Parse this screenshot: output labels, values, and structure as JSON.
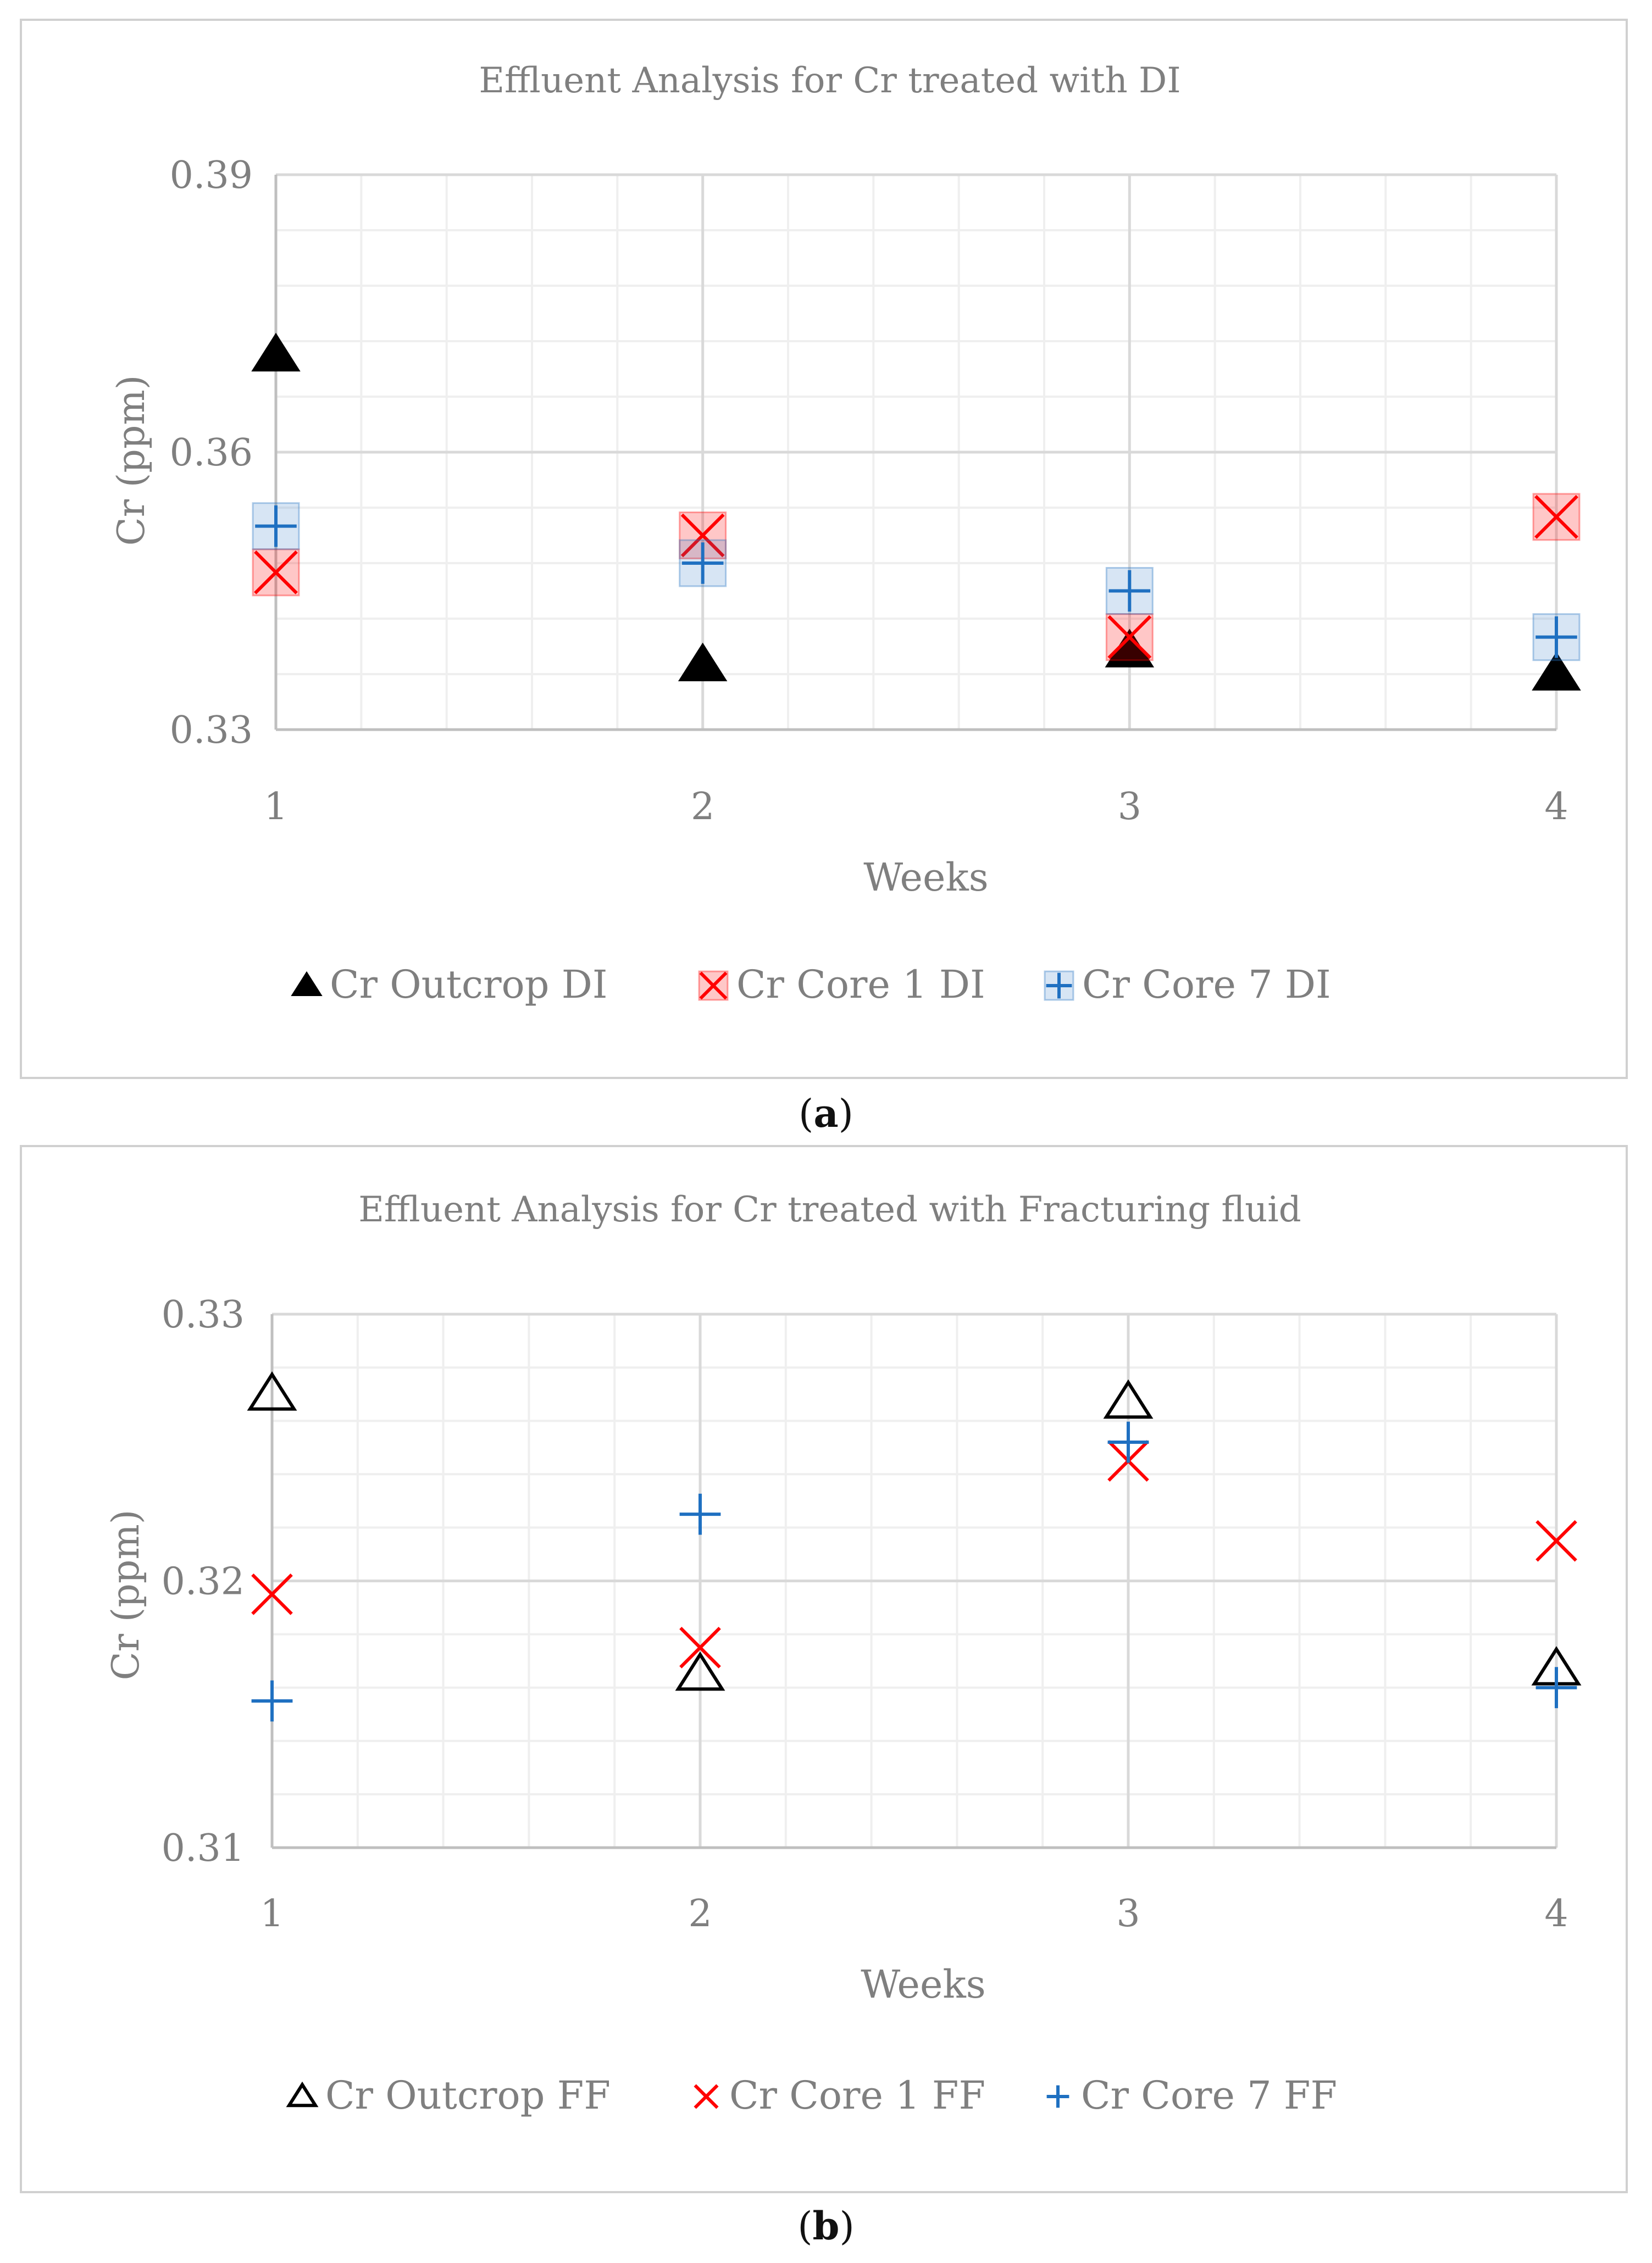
{
  "chart_data": [
    {
      "type": "scatter",
      "title": "Effluent Analysis for Cr treated with DI",
      "xlabel": "Weeks",
      "ylabel": "Cr (ppm)",
      "x": [
        1,
        2,
        3,
        4
      ],
      "xlim": [
        1,
        4
      ],
      "ylim": [
        0.33,
        0.39
      ],
      "xticks": [
        "1",
        "2",
        "3",
        "4"
      ],
      "yticks": [
        "0.33",
        "0.36",
        "0.39"
      ],
      "ytick_values": [
        0.33,
        0.36,
        0.39
      ],
      "grid": true,
      "legend_position": "bottom",
      "series": [
        {
          "name": "Cr Outcrop DI",
          "marker": "filled-triangle",
          "color": "#000000",
          "values": [
            0.3705,
            0.337,
            0.3385,
            0.336
          ]
        },
        {
          "name": "Cr Core 1 DI",
          "marker": "star-x",
          "color": "#ff0000",
          "values": [
            0.347,
            0.351,
            0.34,
            0.353
          ]
        },
        {
          "name": "Cr Core 7 DI",
          "marker": "plus",
          "color": "#1f70c1",
          "values": [
            0.352,
            0.348,
            0.345,
            0.34
          ]
        }
      ],
      "caption": "a"
    },
    {
      "type": "scatter",
      "title": "Effluent Analysis for Cr treated with Fracturing fluid",
      "xlabel": "Weeks",
      "ylabel": "Cr (ppm)",
      "x": [
        1,
        2,
        3,
        4
      ],
      "xlim": [
        1,
        4
      ],
      "ylim": [
        0.31,
        0.33
      ],
      "xticks": [
        "1",
        "2",
        "3",
        "4"
      ],
      "yticks": [
        "0.31",
        "0.32",
        "0.33"
      ],
      "ytick_values": [
        0.31,
        0.32,
        0.33
      ],
      "grid": true,
      "legend_position": "bottom",
      "series": [
        {
          "name": "Cr Outcrop FF",
          "marker": "open-triangle",
          "color": "#000000",
          "values": [
            0.327,
            0.3165,
            0.3267,
            0.3167
          ]
        },
        {
          "name": "Cr Core 1 FF",
          "marker": "star-x",
          "color": "#ff0000",
          "values": [
            0.3195,
            0.3175,
            0.3245,
            0.3215
          ]
        },
        {
          "name": "Cr Core 7 FF",
          "marker": "plus",
          "color": "#1f70c1",
          "values": [
            0.3155,
            0.3225,
            0.3252,
            0.316
          ]
        }
      ],
      "caption": "b"
    }
  ],
  "colors": {
    "axis_text": "#7f7f7f",
    "grid_major": "#d9d9d9",
    "grid_minor": "#efefef",
    "panel_border": "#d0d0d0"
  }
}
